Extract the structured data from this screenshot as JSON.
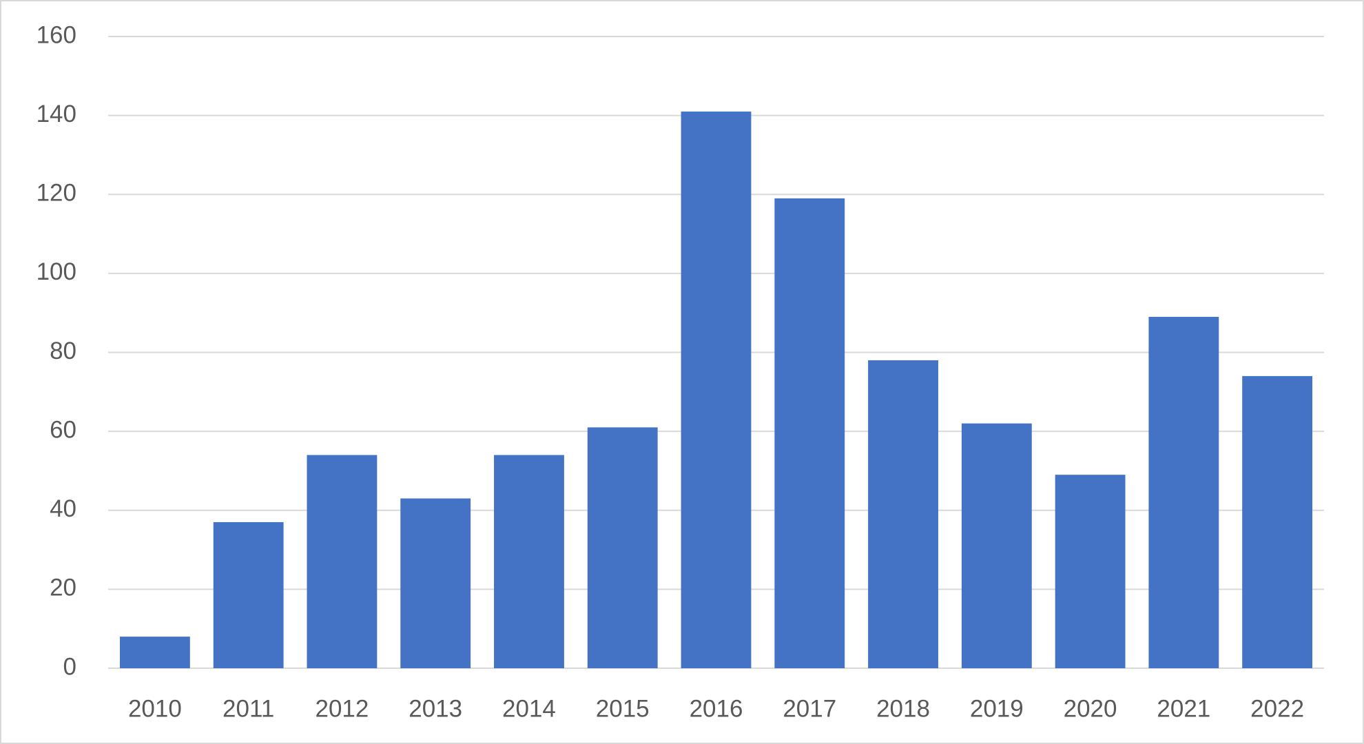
{
  "chart_data": {
    "type": "bar",
    "categories": [
      "2010",
      "2011",
      "2012",
      "2013",
      "2014",
      "2015",
      "2016",
      "2017",
      "2018",
      "2019",
      "2020",
      "2021",
      "2022"
    ],
    "values": [
      8,
      37,
      54,
      43,
      54,
      61,
      141,
      119,
      78,
      62,
      49,
      89,
      74
    ],
    "color": "#4472c4",
    "ylim": [
      0,
      160
    ],
    "yticks": [
      0,
      20,
      40,
      60,
      80,
      100,
      120,
      140,
      160
    ],
    "grid": true
  }
}
